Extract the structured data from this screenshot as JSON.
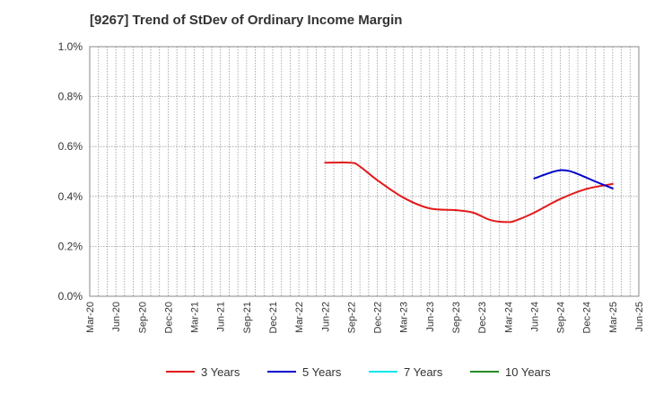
{
  "chart_data": {
    "type": "line",
    "title": "[9267]  Trend of StDev of Ordinary Income Margin",
    "xlabel": "",
    "ylabel": "",
    "ylim": [
      0,
      1.0
    ],
    "y_ticks": [
      "0.0%",
      "0.2%",
      "0.4%",
      "0.6%",
      "0.8%",
      "1.0%"
    ],
    "x_ticks": [
      "Mar-20",
      "Jun-20",
      "Sep-20",
      "Dec-20",
      "Mar-21",
      "Jun-21",
      "Sep-21",
      "Dec-21",
      "Mar-22",
      "Jun-22",
      "Sep-22",
      "Dec-22",
      "Mar-23",
      "Jun-23",
      "Sep-23",
      "Dec-23",
      "Mar-24",
      "Jun-24",
      "Sep-24",
      "Dec-24",
      "Mar-25",
      "Jun-25"
    ],
    "grid": true,
    "legend_position": "bottom",
    "series": [
      {
        "name": "3 Years",
        "color": "#e31a1c",
        "points": [
          {
            "x": "Jun-22",
            "y": 0.535
          },
          {
            "x": "Sep-22",
            "y": 0.535
          },
          {
            "x": "Oct-22",
            "y": 0.52
          },
          {
            "x": "Dec-22",
            "y": 0.465
          },
          {
            "x": "Mar-23",
            "y": 0.395
          },
          {
            "x": "Jun-23",
            "y": 0.352
          },
          {
            "x": "Sep-23",
            "y": 0.345
          },
          {
            "x": "Nov-23",
            "y": 0.335
          },
          {
            "x": "Jan-24",
            "y": 0.305
          },
          {
            "x": "Mar-24",
            "y": 0.297
          },
          {
            "x": "Apr-24",
            "y": 0.305
          },
          {
            "x": "Jun-24",
            "y": 0.335
          },
          {
            "x": "Sep-24",
            "y": 0.39
          },
          {
            "x": "Dec-24",
            "y": 0.43
          },
          {
            "x": "Mar-25",
            "y": 0.45
          }
        ]
      },
      {
        "name": "5 Years",
        "color": "#0000cc",
        "points": [
          {
            "x": "Jun-24",
            "y": 0.472
          },
          {
            "x": "Aug-24",
            "y": 0.497
          },
          {
            "x": "Sep-24",
            "y": 0.505
          },
          {
            "x": "Oct-24",
            "y": 0.502
          },
          {
            "x": "Nov-24",
            "y": 0.49
          },
          {
            "x": "Jan-25",
            "y": 0.46
          },
          {
            "x": "Mar-25",
            "y": 0.432
          }
        ]
      },
      {
        "name": "7 Years",
        "color": "#00e5ee",
        "points": []
      },
      {
        "name": "10 Years",
        "color": "#228b22",
        "points": []
      }
    ]
  }
}
